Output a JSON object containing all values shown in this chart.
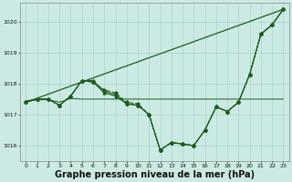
{
  "background_color": "#cceae4",
  "grid_color": "#aad4cc",
  "line_color": "#1e5c1e",
  "xlabel": "Graphe pression niveau de la mer (hPa)",
  "xlabel_fontsize": 7.0,
  "xlim": [
    -0.5,
    23.5
  ],
  "ylim": [
    1015.5,
    1020.6
  ],
  "yticks": [
    1016,
    1017,
    1018,
    1019,
    1020
  ],
  "xticks": [
    0,
    1,
    2,
    3,
    4,
    5,
    6,
    7,
    8,
    9,
    10,
    11,
    12,
    13,
    14,
    15,
    16,
    17,
    18,
    19,
    20,
    21,
    22,
    23
  ],
  "main_curve_x": [
    0,
    1,
    2,
    3,
    4,
    5,
    6,
    7,
    8,
    9,
    10,
    11,
    12,
    13,
    14,
    15,
    16,
    17,
    18,
    19,
    20,
    21,
    22,
    23
  ],
  "main_curve_y": [
    1017.4,
    1017.5,
    1017.5,
    1017.3,
    1017.6,
    1018.1,
    1018.1,
    1017.75,
    1017.65,
    1017.35,
    1017.3,
    1017.0,
    1015.85,
    1016.1,
    1016.05,
    1016.0,
    1016.5,
    1017.25,
    1017.1,
    1017.4,
    1018.3,
    1019.6,
    1019.9,
    1020.4
  ],
  "curve2_x": [
    0,
    1,
    2,
    3,
    4,
    5,
    6,
    7,
    8,
    9,
    10,
    11,
    12,
    13,
    14,
    15,
    16,
    17,
    18,
    19,
    20,
    21,
    22,
    23
  ],
  "curve2_y": [
    1017.4,
    1017.5,
    1017.5,
    1017.3,
    1017.6,
    1018.1,
    1018.05,
    1017.7,
    1017.6,
    1017.35,
    1017.3,
    1017.0,
    1015.85,
    1016.1,
    1016.05,
    1016.0,
    1016.5,
    1017.25,
    1017.1,
    1017.4,
    1018.3,
    1019.6,
    1019.9,
    1020.4
  ],
  "curve3_x": [
    0,
    1,
    2,
    3,
    4,
    5,
    6,
    7,
    8,
    9,
    10,
    11,
    12,
    13,
    14,
    15,
    16,
    17,
    18,
    19,
    20,
    21,
    22,
    23
  ],
  "curve3_y": [
    1017.4,
    1017.5,
    1017.5,
    1017.3,
    1017.6,
    1018.1,
    1018.05,
    1017.8,
    1017.7,
    1017.4,
    1017.35,
    1017.0,
    1015.85,
    1016.1,
    1016.05,
    1016.0,
    1016.5,
    1017.25,
    1017.1,
    1017.4,
    1018.3,
    1019.6,
    1019.9,
    1020.4
  ],
  "flat_line_x": [
    0,
    1,
    2,
    3,
    4,
    5,
    6,
    7,
    8,
    9,
    10,
    11,
    12,
    13,
    14,
    15,
    16,
    17,
    18,
    19,
    20,
    21,
    22,
    23
  ],
  "flat_line_y": [
    1017.45,
    1017.48,
    1017.48,
    1017.4,
    1017.52,
    1017.5,
    1017.5,
    1017.5,
    1017.5,
    1017.5,
    1017.5,
    1017.5,
    1017.5,
    1017.5,
    1017.5,
    1017.5,
    1017.5,
    1017.5,
    1017.5,
    1017.5,
    1017.5,
    1017.5,
    1017.5,
    1017.5
  ],
  "diag_line_x": [
    0,
    23
  ],
  "diag_line_y": [
    1017.4,
    1020.4
  ]
}
